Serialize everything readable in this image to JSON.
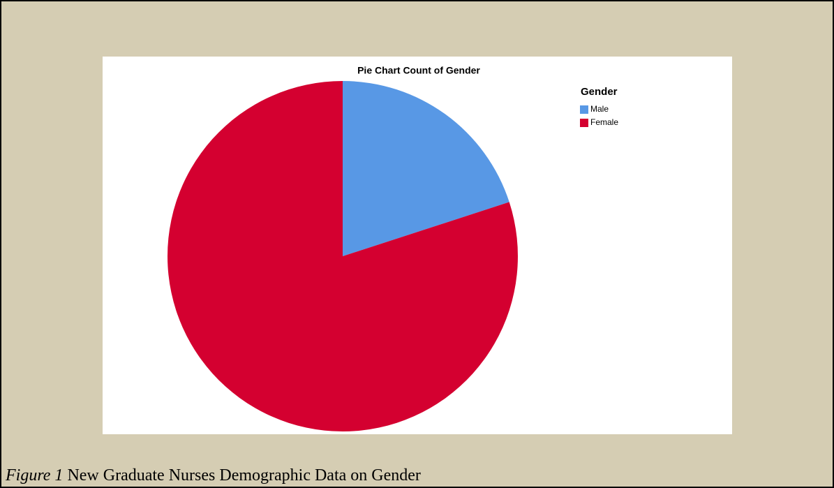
{
  "chart_data": {
    "type": "pie",
    "title": "Pie Chart Count of Gender",
    "legend_title": "Gender",
    "legend": "right",
    "categories": [
      "Male",
      "Female"
    ],
    "values": [
      20,
      80
    ],
    "colors": [
      "#5898e5",
      "#d40030"
    ]
  },
  "caption": {
    "label": "Figure 1",
    "text": "New Graduate Nurses Demographic Data on Gender"
  }
}
